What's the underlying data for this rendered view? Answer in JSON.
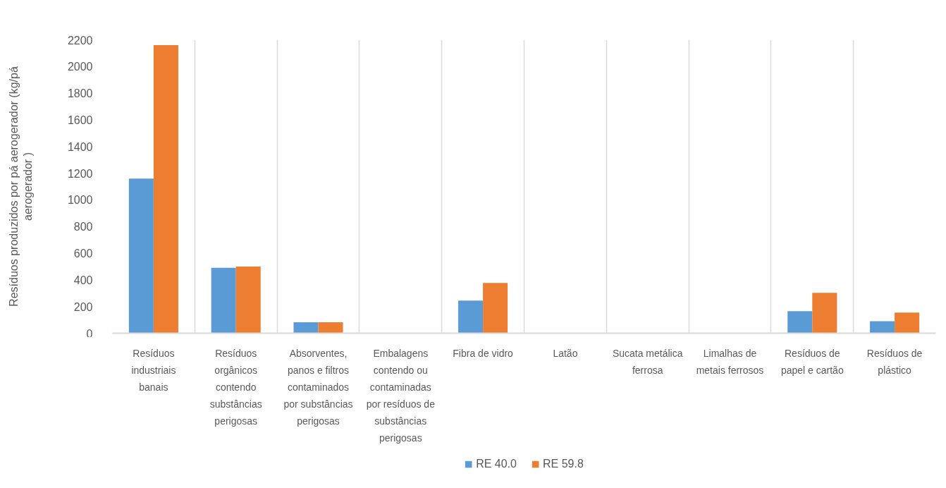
{
  "chart_data": {
    "type": "bar",
    "ylabel": "Resíduos produzidos por pá aerogerador (kg/pá aerogerador )",
    "categories": [
      "Resíduos industriais banais",
      "Resíduos orgânicos contendo substâncias perigosas",
      "Absorventes, panos e filtros contaminados por substâncias perigosas",
      "Embalagens contendo ou contaminadas por resíduos de substâncias perigosas",
      "Fibra de vidro",
      "Latão",
      "Sucata metálica ferrosa",
      "Limalhas de metais ferrosos",
      "Resíduos de papel e cartão",
      "Resíduos de plástico"
    ],
    "series": [
      {
        "name": "RE 40.0",
        "color": "#5b9bd5",
        "values": [
          1160,
          490,
          82,
          0,
          245,
          0,
          0,
          0,
          165,
          90
        ]
      },
      {
        "name": "RE 59.8",
        "color": "#ed7d31",
        "values": [
          2160,
          500,
          82,
          0,
          377,
          0,
          0,
          0,
          303,
          155
        ]
      }
    ],
    "ylim": [
      0,
      2200
    ],
    "yticks": [
      0,
      200,
      400,
      600,
      800,
      1000,
      1200,
      1400,
      1600,
      1800,
      2000,
      2200
    ],
    "grid": "x",
    "legend": "bottom"
  }
}
